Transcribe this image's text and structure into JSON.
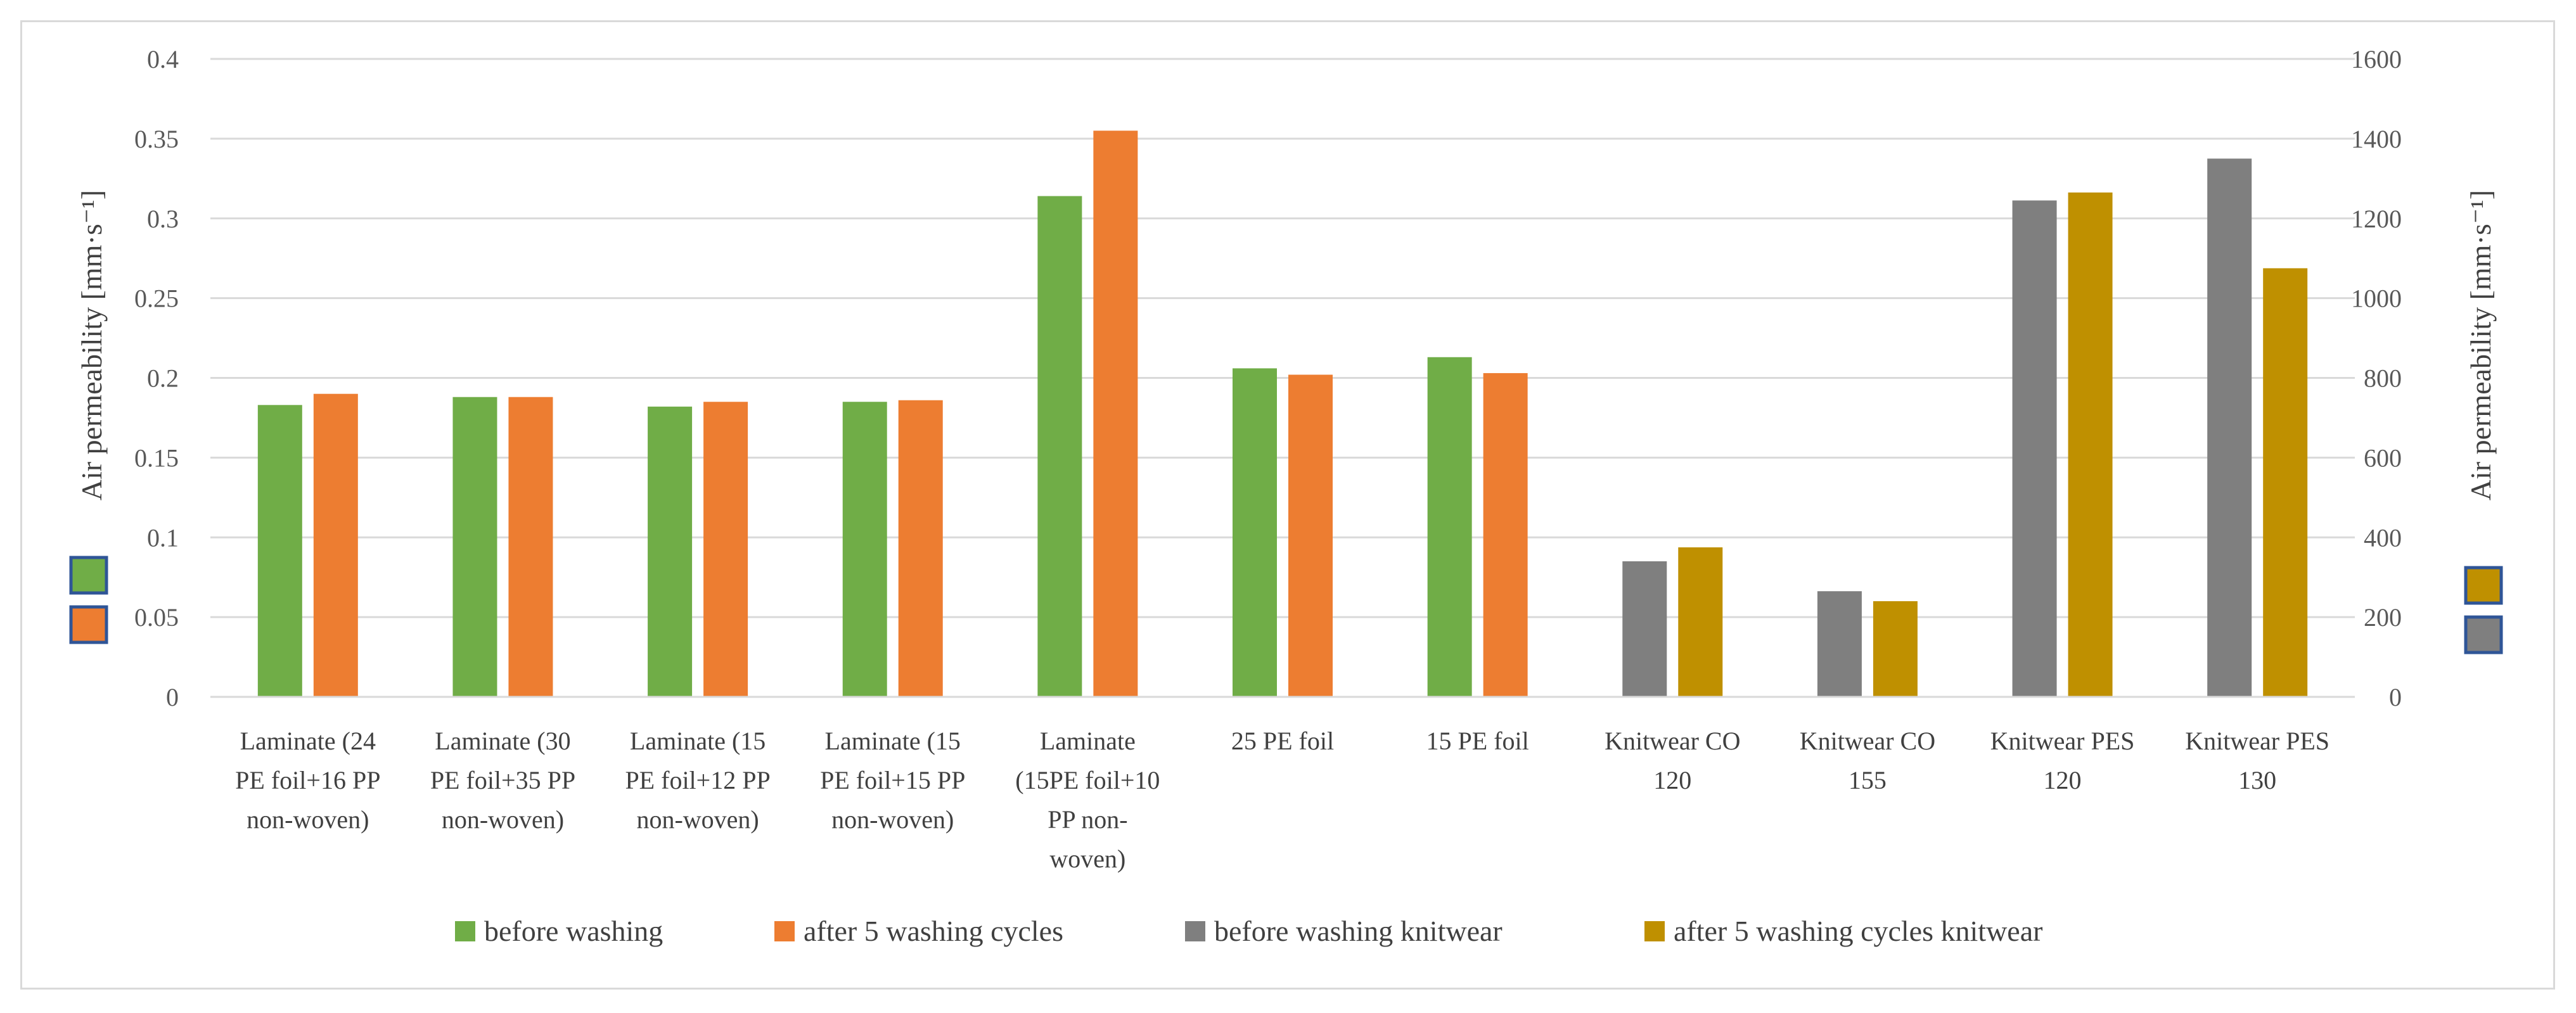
{
  "chart_data": {
    "type": "bar",
    "title": "",
    "categories": [
      [
        "Laminate (24",
        "PE foil+16 PP",
        "non-woven)"
      ],
      [
        "Laminate (30",
        "PE foil+35 PP",
        "non-woven)"
      ],
      [
        "Laminate (15",
        "PE foil+12 PP",
        "non-woven)"
      ],
      [
        "Laminate (15",
        "PE foil+15 PP",
        "non-woven)"
      ],
      [
        "Laminate",
        "(15PE foil+10",
        "PP non-",
        "woven)"
      ],
      [
        "25 PE foil"
      ],
      [
        "15 PE foil"
      ],
      [
        "Knitwear CO",
        "120"
      ],
      [
        "Knitwear CO",
        "155"
      ],
      [
        "Knitwear PES",
        "120"
      ],
      [
        "Knitwear PES",
        "130"
      ]
    ],
    "y_left": {
      "label": "Air permeability [mm·s⁻¹]",
      "ylim": [
        0,
        0.4
      ],
      "ticks": [
        "0",
        "0.05",
        "0.1",
        "0.15",
        "0.2",
        "0.25",
        "0.3",
        "0.35",
        "0.4"
      ],
      "tick_values": [
        0,
        0.05,
        0.1,
        0.15,
        0.2,
        0.25,
        0.3,
        0.35,
        0.4
      ]
    },
    "y_right": {
      "label": "Air permeability [mm·s⁻¹]",
      "ylim": [
        0,
        1600
      ],
      "ticks": [
        "0",
        "200",
        "400",
        "600",
        "800",
        "1000",
        "1200",
        "1400",
        "1600"
      ],
      "tick_values": [
        0,
        200,
        400,
        600,
        800,
        1000,
        1200,
        1400,
        1600
      ]
    },
    "series": [
      {
        "name": "before washing",
        "axis": "left",
        "color": "#70ad47",
        "values": [
          0.183,
          0.188,
          0.182,
          0.185,
          0.314,
          0.206,
          0.213,
          null,
          null,
          null,
          null
        ]
      },
      {
        "name": "after 5 washing cycles",
        "axis": "left",
        "color": "#ed7d31",
        "values": [
          0.19,
          0.188,
          0.185,
          0.186,
          0.355,
          0.202,
          0.203,
          null,
          null,
          null,
          null
        ]
      },
      {
        "name": "before washing knitwear",
        "axis": "right",
        "color": "#7f7f7f",
        "values": [
          null,
          null,
          null,
          null,
          null,
          null,
          null,
          340,
          265,
          1245,
          1350
        ]
      },
      {
        "name": "after 5 washing cycles knitwear",
        "axis": "right",
        "color": "#bf9000",
        "values": [
          null,
          null,
          null,
          null,
          null,
          null,
          null,
          375,
          240,
          1265,
          1075
        ]
      }
    ],
    "axis_markers": {
      "left": [
        {
          "series": "before washing",
          "color": "#70ad47"
        },
        {
          "series": "after 5 washing cycles",
          "color": "#ed7d31"
        }
      ],
      "right": [
        {
          "series": "after 5 washing cycles knitwear",
          "color": "#bf9000"
        },
        {
          "series": "before washing knitwear",
          "color": "#7f7f7f"
        }
      ]
    },
    "grid": true,
    "legend_position": "bottom"
  }
}
